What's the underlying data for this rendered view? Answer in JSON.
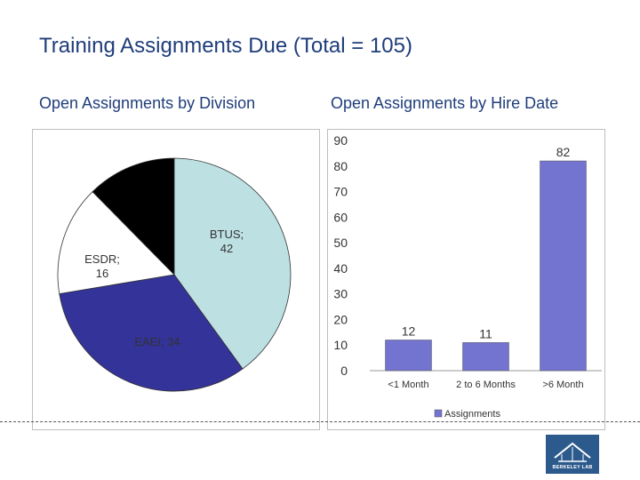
{
  "slide": {
    "title": "Training Assignments Due (Total = 105)",
    "subtitle_left": "Open Assignments by Division",
    "subtitle_right": "Open Assignments by Hire Date"
  },
  "logo": {
    "text": "BERKELEY LAB"
  },
  "chart_data": [
    {
      "type": "pie",
      "title": "Open Assignments by Division",
      "slices": [
        {
          "label": "BTUS",
          "value": 42,
          "display": "BTUS; 42",
          "color": "#bde0e3"
        },
        {
          "label": "EAEI",
          "value": 34,
          "display": "EAEI; 34",
          "color": "#333399"
        },
        {
          "label": "ESDR",
          "value": 16,
          "display": "ESDR; 16",
          "color": "#ffffff"
        },
        {
          "label": "",
          "value": 13,
          "display": "",
          "color": "#000000"
        }
      ]
    },
    {
      "type": "bar",
      "title": "Open Assignments by Hire Date",
      "categories": [
        "<1 Month",
        "2 to 6 Months",
        ">6 Month"
      ],
      "series": [
        {
          "name": "Assignments",
          "values": [
            12,
            11,
            82
          ],
          "color": "#7373d0"
        }
      ],
      "ylim": [
        0,
        90
      ],
      "yticks": [
        0,
        10,
        20,
        30,
        40,
        50,
        60,
        70,
        80,
        90
      ],
      "legend": "bottom"
    }
  ]
}
